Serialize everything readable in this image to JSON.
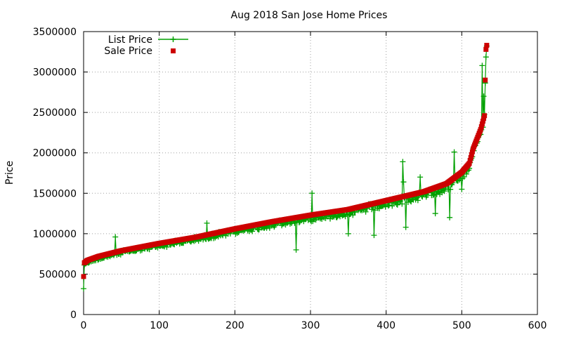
{
  "chart_data": {
    "type": "scatter",
    "title": "Aug 2018 San Jose Home Prices",
    "xlabel": "",
    "ylabel": "Price",
    "xlim": [
      0,
      600
    ],
    "ylim": [
      0,
      3500000
    ],
    "xticks": [
      "0",
      "100",
      "200",
      "300",
      "400",
      "500",
      "600"
    ],
    "yticks": [
      "0",
      "500000",
      "1000000",
      "1500000",
      "2000000",
      "2500000",
      "3000000",
      "3500000"
    ],
    "grid": true,
    "legend_position": "top-left",
    "colors": {
      "list_price": "#00a000",
      "sale_price": "#cc0000"
    },
    "series": [
      {
        "name": "List Price",
        "style": "line-with-plus-markers"
      },
      {
        "name": "Sale Price",
        "style": "square-markers"
      }
    ],
    "sale_price_anchors": [
      [
        0,
        470000
      ],
      [
        1,
        640000
      ],
      [
        5,
        670000
      ],
      [
        20,
        720000
      ],
      [
        50,
        790000
      ],
      [
        100,
        880000
      ],
      [
        150,
        960000
      ],
      [
        200,
        1060000
      ],
      [
        250,
        1150000
      ],
      [
        300,
        1230000
      ],
      [
        350,
        1300000
      ],
      [
        400,
        1410000
      ],
      [
        450,
        1520000
      ],
      [
        480,
        1620000
      ],
      [
        500,
        1760000
      ],
      [
        510,
        1870000
      ],
      [
        515,
        2050000
      ],
      [
        520,
        2170000
      ],
      [
        525,
        2290000
      ],
      [
        530,
        2460000
      ],
      [
        531,
        2900000
      ],
      [
        532,
        3280000
      ],
      [
        533,
        3330000
      ]
    ],
    "list_price_outliers": [
      [
        0,
        320000
      ],
      [
        42,
        960000
      ],
      [
        163,
        1130000
      ],
      [
        281,
        800000
      ],
      [
        302,
        1500000
      ],
      [
        330,
        1220000
      ],
      [
        350,
        1000000
      ],
      [
        384,
        980000
      ],
      [
        410,
        1380000
      ],
      [
        422,
        1890000
      ],
      [
        423,
        1640000
      ],
      [
        426,
        1080000
      ],
      [
        445,
        1700000
      ],
      [
        465,
        1250000
      ],
      [
        484,
        1200000
      ],
      [
        490,
        2010000
      ],
      [
        500,
        1550000
      ],
      [
        527,
        3080000
      ],
      [
        529,
        2700000
      ]
    ],
    "point_count": 534
  }
}
